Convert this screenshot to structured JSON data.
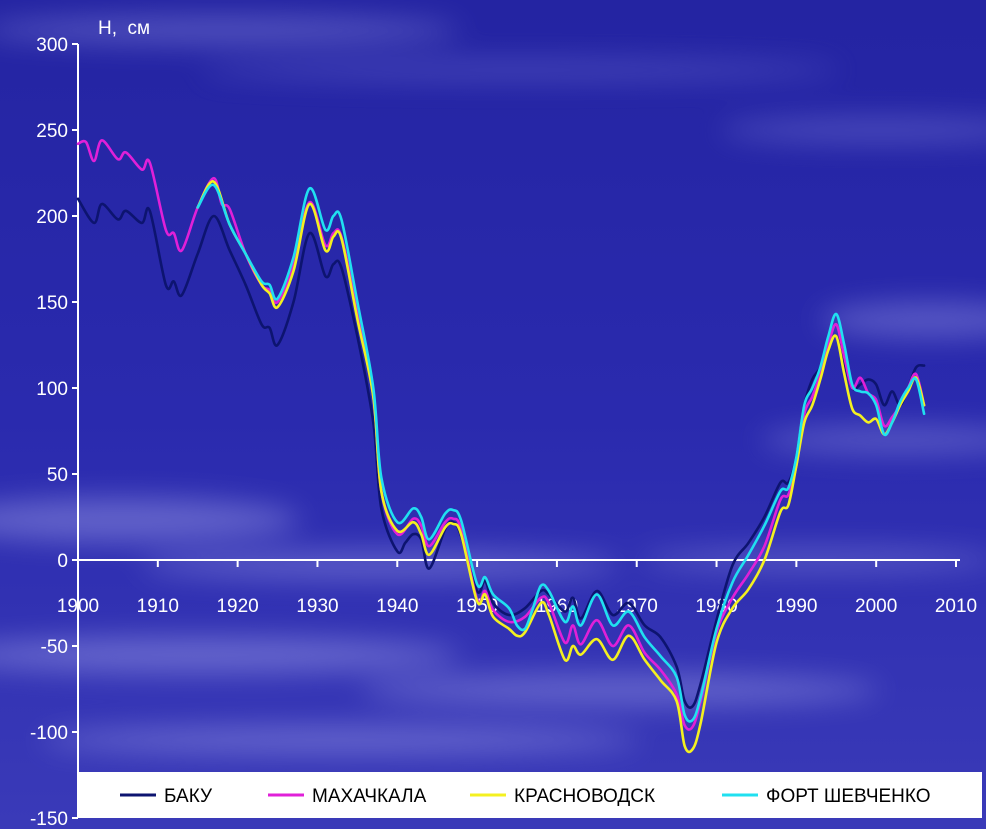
{
  "chart_data": {
    "type": "line",
    "title": "",
    "xlabel": "",
    "ylabel": "H,  см",
    "xlim": [
      1900,
      2010
    ],
    "ylim": [
      -150,
      300
    ],
    "x_ticks": [
      1900,
      1910,
      1920,
      1930,
      1940,
      1950,
      1960,
      1970,
      1980,
      1990,
      2000,
      2010
    ],
    "y_ticks": [
      300,
      250,
      200,
      150,
      100,
      50,
      0,
      -50,
      -100,
      -150
    ],
    "grid": false,
    "legend_position": "bottom",
    "colors": {
      "background": "#2626a8",
      "axis": "#ffffff",
      "legend_box": "#ffffff",
      "legend_text": "#000000"
    },
    "series": [
      {
        "name": "БАКУ",
        "color": "#0d1470",
        "points": [
          [
            1900,
            210
          ],
          [
            1902,
            196
          ],
          [
            1903,
            207
          ],
          [
            1905,
            198
          ],
          [
            1906,
            203
          ],
          [
            1908,
            196
          ],
          [
            1909,
            203
          ],
          [
            1911,
            160
          ],
          [
            1912,
            162
          ],
          [
            1913,
            154
          ],
          [
            1915,
            178
          ],
          [
            1917,
            200
          ],
          [
            1919,
            180
          ],
          [
            1921,
            160
          ],
          [
            1923,
            137
          ],
          [
            1924,
            135
          ],
          [
            1925,
            125
          ],
          [
            1927,
            150
          ],
          [
            1929,
            190
          ],
          [
            1931,
            165
          ],
          [
            1932,
            172
          ],
          [
            1933,
            170
          ],
          [
            1935,
            130
          ],
          [
            1937,
            80
          ],
          [
            1938,
            30
          ],
          [
            1940,
            5
          ],
          [
            1941,
            10
          ],
          [
            1942,
            15
          ],
          [
            1943,
            12
          ],
          [
            1944,
            -5
          ],
          [
            1946,
            18
          ],
          [
            1947,
            22
          ],
          [
            1948,
            14
          ],
          [
            1950,
            -18
          ],
          [
            1951,
            -12
          ],
          [
            1952,
            -25
          ],
          [
            1954,
            -32
          ],
          [
            1956,
            -28
          ],
          [
            1958,
            -18
          ],
          [
            1959,
            -20
          ],
          [
            1961,
            -30
          ],
          [
            1962,
            -22
          ],
          [
            1963,
            -34
          ],
          [
            1965,
            -18
          ],
          [
            1967,
            -32
          ],
          [
            1969,
            -25
          ],
          [
            1971,
            -38
          ],
          [
            1973,
            -45
          ],
          [
            1975,
            -62
          ],
          [
            1976,
            -82
          ],
          [
            1977,
            -85
          ],
          [
            1978,
            -72
          ],
          [
            1980,
            -35
          ],
          [
            1982,
            -3
          ],
          [
            1984,
            10
          ],
          [
            1986,
            25
          ],
          [
            1988,
            45
          ],
          [
            1989,
            45
          ],
          [
            1990,
            60
          ],
          [
            1991,
            90
          ],
          [
            1992,
            105
          ],
          [
            1993,
            112
          ],
          [
            1994,
            125
          ],
          [
            1995,
            130
          ],
          [
            1996,
            115
          ],
          [
            1997,
            100
          ],
          [
            1998,
            102
          ],
          [
            1999,
            105
          ],
          [
            2000,
            102
          ],
          [
            2001,
            90
          ],
          [
            2002,
            98
          ],
          [
            2003,
            90
          ],
          [
            2004,
            100
          ],
          [
            2005,
            112
          ],
          [
            2006,
            113
          ]
        ]
      },
      {
        "name": "МАХАЧКАЛА",
        "color": "#e020d8",
        "points": [
          [
            1900,
            242
          ],
          [
            1901,
            243
          ],
          [
            1902,
            232
          ],
          [
            1903,
            244
          ],
          [
            1905,
            233
          ],
          [
            1906,
            237
          ],
          [
            1908,
            227
          ],
          [
            1909,
            231
          ],
          [
            1911,
            192
          ],
          [
            1912,
            190
          ],
          [
            1913,
            180
          ],
          [
            1915,
            205
          ],
          [
            1917,
            222
          ],
          [
            1918,
            207
          ],
          [
            1919,
            204
          ],
          [
            1921,
            178
          ],
          [
            1923,
            160
          ],
          [
            1924,
            157
          ],
          [
            1925,
            150
          ],
          [
            1927,
            172
          ],
          [
            1929,
            208
          ],
          [
            1931,
            183
          ],
          [
            1932,
            190
          ],
          [
            1933,
            188
          ],
          [
            1935,
            145
          ],
          [
            1937,
            95
          ],
          [
            1938,
            40
          ],
          [
            1940,
            15
          ],
          [
            1942,
            24
          ],
          [
            1943,
            20
          ],
          [
            1944,
            8
          ],
          [
            1946,
            22
          ],
          [
            1947,
            24
          ],
          [
            1948,
            18
          ],
          [
            1950,
            -23
          ],
          [
            1951,
            -18
          ],
          [
            1952,
            -29
          ],
          [
            1954,
            -36
          ],
          [
            1956,
            -33
          ],
          [
            1958,
            -22
          ],
          [
            1959,
            -25
          ],
          [
            1961,
            -48
          ],
          [
            1962,
            -38
          ],
          [
            1963,
            -49
          ],
          [
            1965,
            -35
          ],
          [
            1967,
            -50
          ],
          [
            1969,
            -38
          ],
          [
            1971,
            -54
          ],
          [
            1973,
            -64
          ],
          [
            1975,
            -78
          ],
          [
            1976,
            -96
          ],
          [
            1977,
            -97
          ],
          [
            1978,
            -82
          ],
          [
            1980,
            -42
          ],
          [
            1982,
            -22
          ],
          [
            1984,
            -8
          ],
          [
            1986,
            8
          ],
          [
            1988,
            35
          ],
          [
            1989,
            38
          ],
          [
            1990,
            55
          ],
          [
            1991,
            85
          ],
          [
            1992,
            95
          ],
          [
            1993,
            108
          ],
          [
            1994,
            125
          ],
          [
            1995,
            137
          ],
          [
            1996,
            118
          ],
          [
            1997,
            100
          ],
          [
            1998,
            106
          ],
          [
            1999,
            97
          ],
          [
            2000,
            93
          ],
          [
            2001,
            78
          ],
          [
            2002,
            83
          ],
          [
            2003,
            90
          ],
          [
            2004,
            100
          ],
          [
            2005,
            108
          ],
          [
            2006,
            90
          ]
        ]
      },
      {
        "name": "КРАСНОВОДСК",
        "color": "#f4f020",
        "points": [
          [
            1915,
            205
          ],
          [
            1917,
            220
          ],
          [
            1919,
            195
          ],
          [
            1921,
            178
          ],
          [
            1923,
            160
          ],
          [
            1924,
            155
          ],
          [
            1925,
            147
          ],
          [
            1927,
            168
          ],
          [
            1929,
            207
          ],
          [
            1931,
            180
          ],
          [
            1932,
            188
          ],
          [
            1933,
            187
          ],
          [
            1935,
            140
          ],
          [
            1937,
            95
          ],
          [
            1938,
            40
          ],
          [
            1940,
            17
          ],
          [
            1942,
            22
          ],
          [
            1943,
            15
          ],
          [
            1944,
            3
          ],
          [
            1946,
            19
          ],
          [
            1947,
            21
          ],
          [
            1948,
            15
          ],
          [
            1950,
            -24
          ],
          [
            1951,
            -20
          ],
          [
            1952,
            -33
          ],
          [
            1954,
            -40
          ],
          [
            1955,
            -44
          ],
          [
            1956,
            -42
          ],
          [
            1958,
            -25
          ],
          [
            1959,
            -32
          ],
          [
            1961,
            -58
          ],
          [
            1962,
            -50
          ],
          [
            1963,
            -55
          ],
          [
            1965,
            -46
          ],
          [
            1967,
            -58
          ],
          [
            1969,
            -44
          ],
          [
            1971,
            -58
          ],
          [
            1973,
            -70
          ],
          [
            1975,
            -82
          ],
          [
            1976,
            -108
          ],
          [
            1977,
            -110
          ],
          [
            1978,
            -95
          ],
          [
            1980,
            -48
          ],
          [
            1982,
            -28
          ],
          [
            1984,
            -17
          ],
          [
            1986,
            0
          ],
          [
            1988,
            28
          ],
          [
            1989,
            32
          ],
          [
            1990,
            55
          ],
          [
            1991,
            80
          ],
          [
            1992,
            90
          ],
          [
            1993,
            105
          ],
          [
            1994,
            122
          ],
          [
            1995,
            130
          ],
          [
            1996,
            108
          ],
          [
            1997,
            88
          ],
          [
            1998,
            84
          ],
          [
            1999,
            80
          ],
          [
            2000,
            82
          ],
          [
            2001,
            73
          ],
          [
            2002,
            80
          ],
          [
            2003,
            90
          ],
          [
            2004,
            98
          ],
          [
            2005,
            106
          ],
          [
            2006,
            90
          ]
        ]
      },
      {
        "name": "ФОРТ ШЕВЧЕНКО",
        "color": "#20e0f0",
        "points": [
          [
            1915,
            205
          ],
          [
            1917,
            218
          ],
          [
            1919,
            195
          ],
          [
            1921,
            178
          ],
          [
            1923,
            162
          ],
          [
            1924,
            160
          ],
          [
            1925,
            152
          ],
          [
            1927,
            176
          ],
          [
            1929,
            216
          ],
          [
            1931,
            192
          ],
          [
            1932,
            200
          ],
          [
            1933,
            198
          ],
          [
            1935,
            150
          ],
          [
            1937,
            100
          ],
          [
            1938,
            48
          ],
          [
            1940,
            22
          ],
          [
            1942,
            30
          ],
          [
            1943,
            25
          ],
          [
            1944,
            12
          ],
          [
            1946,
            27
          ],
          [
            1947,
            29
          ],
          [
            1948,
            23
          ],
          [
            1950,
            -14
          ],
          [
            1951,
            -10
          ],
          [
            1952,
            -20
          ],
          [
            1954,
            -28
          ],
          [
            1955,
            -38
          ],
          [
            1956,
            -40
          ],
          [
            1957,
            -28
          ],
          [
            1958,
            -15
          ],
          [
            1959,
            -18
          ],
          [
            1961,
            -36
          ],
          [
            1962,
            -27
          ],
          [
            1963,
            -38
          ],
          [
            1965,
            -20
          ],
          [
            1967,
            -38
          ],
          [
            1969,
            -30
          ],
          [
            1971,
            -45
          ],
          [
            1973,
            -56
          ],
          [
            1975,
            -68
          ],
          [
            1976,
            -90
          ],
          [
            1977,
            -93
          ],
          [
            1978,
            -80
          ],
          [
            1980,
            -40
          ],
          [
            1982,
            -13
          ],
          [
            1984,
            3
          ],
          [
            1986,
            20
          ],
          [
            1988,
            40
          ],
          [
            1989,
            42
          ],
          [
            1990,
            60
          ],
          [
            1991,
            90
          ],
          [
            1992,
            100
          ],
          [
            1993,
            112
          ],
          [
            1994,
            130
          ],
          [
            1995,
            143
          ],
          [
            1996,
            125
          ],
          [
            1997,
            102
          ],
          [
            1998,
            98
          ],
          [
            1999,
            97
          ],
          [
            2000,
            90
          ],
          [
            2001,
            73
          ],
          [
            2002,
            80
          ],
          [
            2003,
            92
          ],
          [
            2004,
            100
          ],
          [
            2005,
            105
          ],
          [
            2006,
            85
          ]
        ]
      }
    ]
  }
}
